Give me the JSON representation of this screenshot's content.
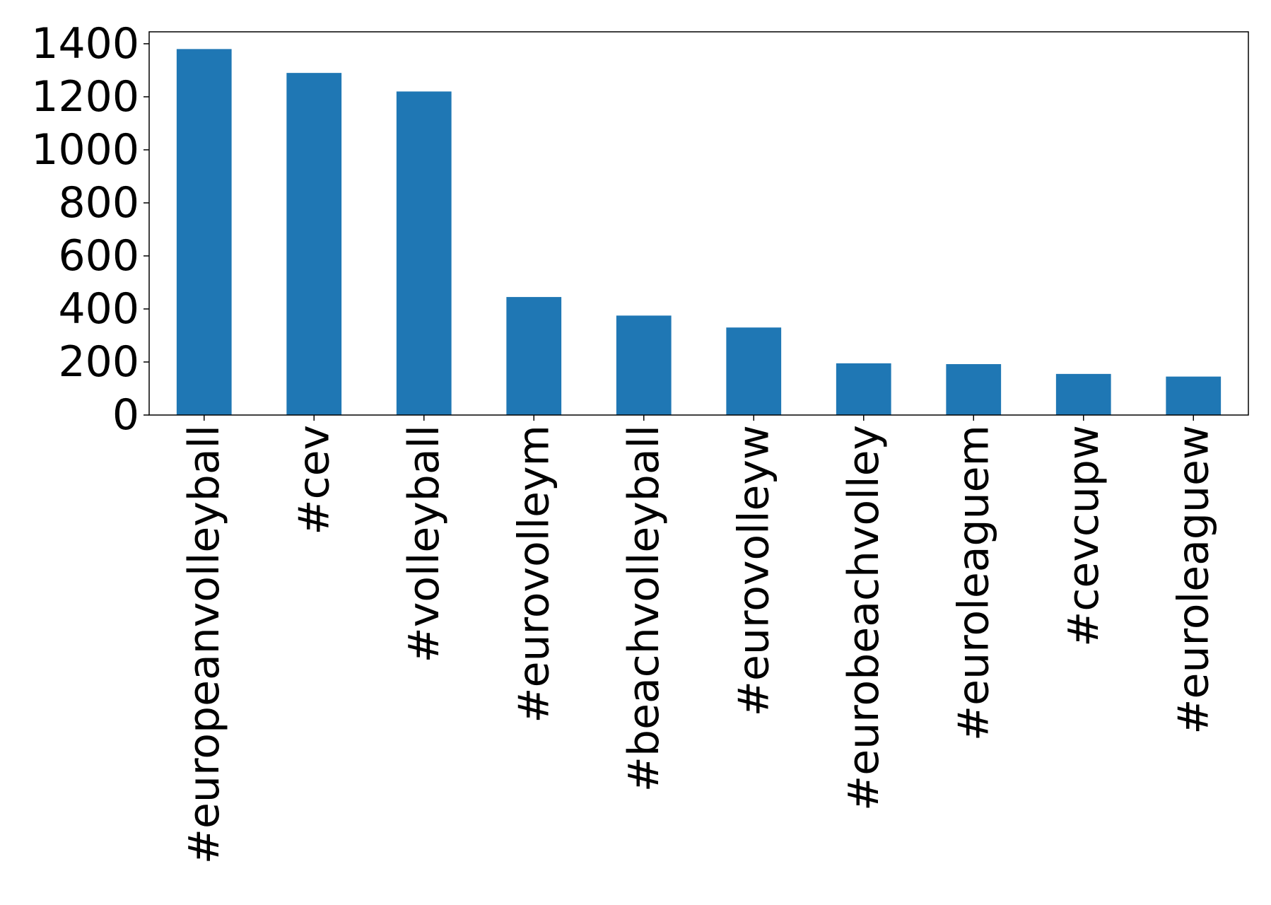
{
  "chart_data": {
    "type": "bar",
    "categories": [
      "#europeanvolleyball",
      "#cev",
      "#volleyball",
      "#eurovolleym",
      "#beachvolleyball",
      "#eurovolleyw",
      "#eurobeachvolley",
      "#euroleaguem",
      "#cevcupw",
      "#euroleaguew"
    ],
    "values": [
      1380,
      1290,
      1220,
      445,
      375,
      330,
      195,
      192,
      155,
      145
    ],
    "yticks": [
      "0",
      "200",
      "400",
      "600",
      "800",
      "1000",
      "1200",
      "1400"
    ],
    "ylim": [
      0,
      1445
    ],
    "title": "",
    "xlabel": "",
    "ylabel": "",
    "grid": false,
    "legend": "none",
    "bar_color": "#1f77b4"
  }
}
